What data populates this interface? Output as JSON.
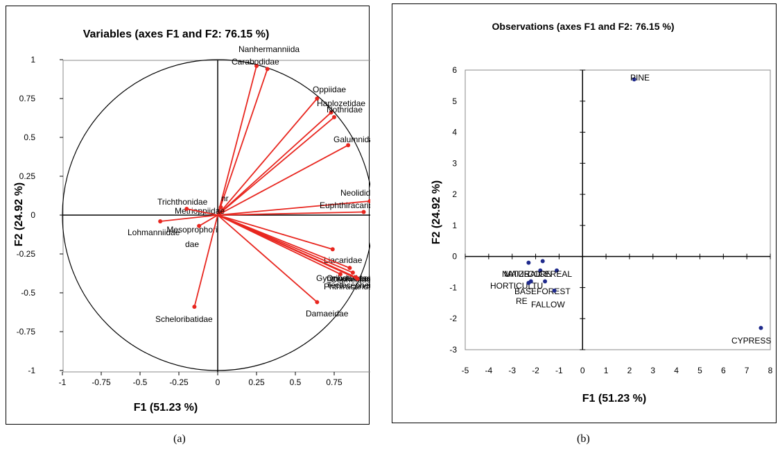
{
  "captions": {
    "a": "(a)",
    "b": "(b)"
  },
  "chart_data": [
    {
      "type": "scatter",
      "title": "Variables (axes F1 and F2: 76.15 %)",
      "xlabel": "F1 (51.23 %)",
      "ylabel": "F2 (24.92 %)",
      "xlim": [
        -1,
        1
      ],
      "ylim": [
        -1,
        1
      ],
      "xticks": [
        "-1",
        "-0.75",
        "-0.5",
        "-0.25",
        "0",
        "0.25",
        "0.5",
        "0.75",
        "1"
      ],
      "yticks": [
        "-1",
        "-0.75",
        "-0.5",
        "-0.25",
        "0",
        "0.25",
        "0.5",
        "0.75",
        "1"
      ],
      "correlation_circle": true,
      "vectors_from_origin": true,
      "point_color": "#e8261f",
      "points": [
        {
          "label": "Nanhermanniida",
          "x": 0.25,
          "y": 0.96
        },
        {
          "label": "Carabodidae",
          "x": 0.32,
          "y": 0.94
        },
        {
          "label": "Oppiidae",
          "x": 0.64,
          "y": 0.75
        },
        {
          "label": "Haplozetidae",
          "x": 0.73,
          "y": 0.66
        },
        {
          "label": "Nothridae",
          "x": 0.75,
          "y": 0.63
        },
        {
          "label": "Galumnidae",
          "x": 0.84,
          "y": 0.45
        },
        {
          "label": "Neolididae",
          "x": 0.98,
          "y": 0.09
        },
        {
          "label": "Euphthiracaridae",
          "x": 0.94,
          "y": 0.02
        },
        {
          "label": "nr",
          "x": 0.02,
          "y": 0.05
        },
        {
          "label": "Metrioppiidae",
          "x": 0.01,
          "y": 0.01
        },
        {
          "label": "Trichthonidae",
          "x": -0.2,
          "y": 0.04
        },
        {
          "label": "Lohmanniidae",
          "x": -0.37,
          "y": -0.04
        },
        {
          "label": "Mesoprophori dae",
          "x": -0.12,
          "y": -0.07
        },
        {
          "label": "Liacaridae",
          "x": 0.74,
          "y": -0.22
        },
        {
          "label": "Oribatulidae",
          "x": 0.85,
          "y": -0.34
        },
        {
          "label": "Gymnodamaeidae",
          "x": 0.79,
          "y": -0.38
        },
        {
          "label": "Cepheidae",
          "x": 0.87,
          "y": -0.37
        },
        {
          "label": "Phthiracaridae",
          "x": 0.89,
          "y": -0.4
        },
        {
          "label": "Tectocepheidae",
          "x": 0.9,
          "y": -0.41
        },
        {
          "label": "Scheloribatidae",
          "x": -0.15,
          "y": -0.59
        },
        {
          "label": "Damaeidae",
          "x": 0.64,
          "y": -0.56
        }
      ]
    },
    {
      "type": "scatter",
      "title": "Observations (axes F1 and F2: 76.15 %)",
      "xlabel": "F1 (51.23 %)",
      "ylabel": "F2 (24.92 %)",
      "xlim": [
        -5,
        8
      ],
      "ylim": [
        -3,
        6
      ],
      "xticks": [
        "-5",
        "-4",
        "-3",
        "-2",
        "-1",
        "0",
        "1",
        "2",
        "3",
        "4",
        "5",
        "6",
        "7",
        "8"
      ],
      "yticks": [
        "-3",
        "-2",
        "-1",
        "0",
        "1",
        "2",
        "3",
        "4",
        "5",
        "6"
      ],
      "point_color": "#1f2a8c",
      "points": [
        {
          "label": "PINE",
          "x": 2.2,
          "y": 5.7
        },
        {
          "label": "CYPRESS",
          "x": 7.6,
          "y": -2.3
        },
        {
          "label": "NATURAL",
          "x": -2.3,
          "y": -0.2
        },
        {
          "label": "MAIZE",
          "x": -1.8,
          "y": -0.45
        },
        {
          "label": "CORN",
          "x": -1.7,
          "y": -0.15
        },
        {
          "label": "CEREAL",
          "x": -1.1,
          "y": -0.45
        },
        {
          "label": "HORTICULTU RE",
          "x": -2.2,
          "y": -0.8
        },
        {
          "label": "BASE",
          "x": -2.3,
          "y": -0.85
        },
        {
          "label": "FOREST",
          "x": -1.6,
          "y": -0.8
        },
        {
          "label": "FALLOW",
          "x": -1.2,
          "y": -1.1
        }
      ]
    }
  ]
}
